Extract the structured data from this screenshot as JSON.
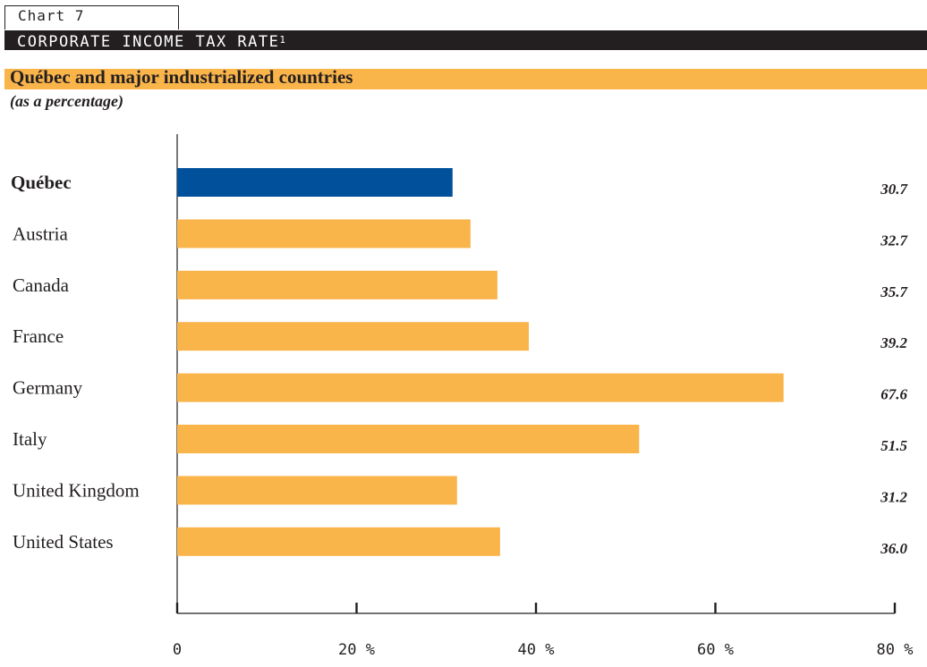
{
  "header": {
    "chart_label": "Chart 7",
    "title": "CORPORATE INCOME TAX RATE",
    "title_footnote": "1",
    "subtitle": "Québec and major industrialized countries",
    "unit_note": "(as a percentage)"
  },
  "colors": {
    "highlight": "#00509b",
    "bar": "#f9b44a",
    "title_bar": "#231f20",
    "subtitle_bar": "#f9b44a"
  },
  "chart_data": {
    "type": "bar",
    "orientation": "horizontal",
    "categories": [
      "Québec",
      "Austria",
      "Canada",
      "France",
      "Germany",
      "Italy",
      "United Kingdom",
      "United States"
    ],
    "values": [
      30.7,
      32.7,
      35.7,
      39.2,
      67.6,
      51.5,
      31.2,
      36.0
    ],
    "value_labels": [
      "30.7",
      "32.7",
      "35.7",
      "39.2",
      "67.6",
      "51.5",
      "31.2",
      "36.0"
    ],
    "highlighted_category": "Québec",
    "xlim": [
      0,
      80
    ],
    "x_ticks": [
      0,
      20,
      40,
      60,
      80
    ],
    "x_tick_labels": [
      "0",
      "20 %",
      "40 %",
      "60 %",
      "80 %"
    ],
    "grid": false,
    "legend": "none"
  }
}
